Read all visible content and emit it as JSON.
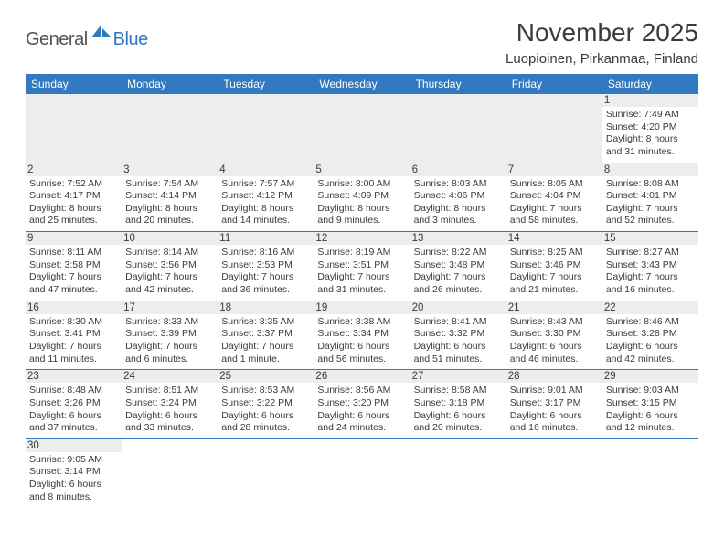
{
  "logo": {
    "text_dark": "General",
    "text_blue": "Blue"
  },
  "title": "November 2025",
  "location": "Luopioinen, Pirkanmaa, Finland",
  "day_headers": [
    "Sunday",
    "Monday",
    "Tuesday",
    "Wednesday",
    "Thursday",
    "Friday",
    "Saturday"
  ],
  "colors": {
    "header_bg": "#3279bf",
    "header_text": "#ffffff",
    "daynum_bg": "#eceded",
    "cell_text": "#3a3a3f",
    "row_border": "#3279bf",
    "logo_dark": "#515159",
    "logo_blue": "#2f78bd"
  },
  "weeks": [
    [
      null,
      null,
      null,
      null,
      null,
      null,
      {
        "n": "1",
        "sunrise": "Sunrise: 7:49 AM",
        "sunset": "Sunset: 4:20 PM",
        "daylight": "Daylight: 8 hours and 31 minutes."
      }
    ],
    [
      {
        "n": "2",
        "sunrise": "Sunrise: 7:52 AM",
        "sunset": "Sunset: 4:17 PM",
        "daylight": "Daylight: 8 hours and 25 minutes."
      },
      {
        "n": "3",
        "sunrise": "Sunrise: 7:54 AM",
        "sunset": "Sunset: 4:14 PM",
        "daylight": "Daylight: 8 hours and 20 minutes."
      },
      {
        "n": "4",
        "sunrise": "Sunrise: 7:57 AM",
        "sunset": "Sunset: 4:12 PM",
        "daylight": "Daylight: 8 hours and 14 minutes."
      },
      {
        "n": "5",
        "sunrise": "Sunrise: 8:00 AM",
        "sunset": "Sunset: 4:09 PM",
        "daylight": "Daylight: 8 hours and 9 minutes."
      },
      {
        "n": "6",
        "sunrise": "Sunrise: 8:03 AM",
        "sunset": "Sunset: 4:06 PM",
        "daylight": "Daylight: 8 hours and 3 minutes."
      },
      {
        "n": "7",
        "sunrise": "Sunrise: 8:05 AM",
        "sunset": "Sunset: 4:04 PM",
        "daylight": "Daylight: 7 hours and 58 minutes."
      },
      {
        "n": "8",
        "sunrise": "Sunrise: 8:08 AM",
        "sunset": "Sunset: 4:01 PM",
        "daylight": "Daylight: 7 hours and 52 minutes."
      }
    ],
    [
      {
        "n": "9",
        "sunrise": "Sunrise: 8:11 AM",
        "sunset": "Sunset: 3:58 PM",
        "daylight": "Daylight: 7 hours and 47 minutes."
      },
      {
        "n": "10",
        "sunrise": "Sunrise: 8:14 AM",
        "sunset": "Sunset: 3:56 PM",
        "daylight": "Daylight: 7 hours and 42 minutes."
      },
      {
        "n": "11",
        "sunrise": "Sunrise: 8:16 AM",
        "sunset": "Sunset: 3:53 PM",
        "daylight": "Daylight: 7 hours and 36 minutes."
      },
      {
        "n": "12",
        "sunrise": "Sunrise: 8:19 AM",
        "sunset": "Sunset: 3:51 PM",
        "daylight": "Daylight: 7 hours and 31 minutes."
      },
      {
        "n": "13",
        "sunrise": "Sunrise: 8:22 AM",
        "sunset": "Sunset: 3:48 PM",
        "daylight": "Daylight: 7 hours and 26 minutes."
      },
      {
        "n": "14",
        "sunrise": "Sunrise: 8:25 AM",
        "sunset": "Sunset: 3:46 PM",
        "daylight": "Daylight: 7 hours and 21 minutes."
      },
      {
        "n": "15",
        "sunrise": "Sunrise: 8:27 AM",
        "sunset": "Sunset: 3:43 PM",
        "daylight": "Daylight: 7 hours and 16 minutes."
      }
    ],
    [
      {
        "n": "16",
        "sunrise": "Sunrise: 8:30 AM",
        "sunset": "Sunset: 3:41 PM",
        "daylight": "Daylight: 7 hours and 11 minutes."
      },
      {
        "n": "17",
        "sunrise": "Sunrise: 8:33 AM",
        "sunset": "Sunset: 3:39 PM",
        "daylight": "Daylight: 7 hours and 6 minutes."
      },
      {
        "n": "18",
        "sunrise": "Sunrise: 8:35 AM",
        "sunset": "Sunset: 3:37 PM",
        "daylight": "Daylight: 7 hours and 1 minute."
      },
      {
        "n": "19",
        "sunrise": "Sunrise: 8:38 AM",
        "sunset": "Sunset: 3:34 PM",
        "daylight": "Daylight: 6 hours and 56 minutes."
      },
      {
        "n": "20",
        "sunrise": "Sunrise: 8:41 AM",
        "sunset": "Sunset: 3:32 PM",
        "daylight": "Daylight: 6 hours and 51 minutes."
      },
      {
        "n": "21",
        "sunrise": "Sunrise: 8:43 AM",
        "sunset": "Sunset: 3:30 PM",
        "daylight": "Daylight: 6 hours and 46 minutes."
      },
      {
        "n": "22",
        "sunrise": "Sunrise: 8:46 AM",
        "sunset": "Sunset: 3:28 PM",
        "daylight": "Daylight: 6 hours and 42 minutes."
      }
    ],
    [
      {
        "n": "23",
        "sunrise": "Sunrise: 8:48 AM",
        "sunset": "Sunset: 3:26 PM",
        "daylight": "Daylight: 6 hours and 37 minutes."
      },
      {
        "n": "24",
        "sunrise": "Sunrise: 8:51 AM",
        "sunset": "Sunset: 3:24 PM",
        "daylight": "Daylight: 6 hours and 33 minutes."
      },
      {
        "n": "25",
        "sunrise": "Sunrise: 8:53 AM",
        "sunset": "Sunset: 3:22 PM",
        "daylight": "Daylight: 6 hours and 28 minutes."
      },
      {
        "n": "26",
        "sunrise": "Sunrise: 8:56 AM",
        "sunset": "Sunset: 3:20 PM",
        "daylight": "Daylight: 6 hours and 24 minutes."
      },
      {
        "n": "27",
        "sunrise": "Sunrise: 8:58 AM",
        "sunset": "Sunset: 3:18 PM",
        "daylight": "Daylight: 6 hours and 20 minutes."
      },
      {
        "n": "28",
        "sunrise": "Sunrise: 9:01 AM",
        "sunset": "Sunset: 3:17 PM",
        "daylight": "Daylight: 6 hours and 16 minutes."
      },
      {
        "n": "29",
        "sunrise": "Sunrise: 9:03 AM",
        "sunset": "Sunset: 3:15 PM",
        "daylight": "Daylight: 6 hours and 12 minutes."
      }
    ],
    [
      {
        "n": "30",
        "sunrise": "Sunrise: 9:05 AM",
        "sunset": "Sunset: 3:14 PM",
        "daylight": "Daylight: 6 hours and 8 minutes."
      },
      null,
      null,
      null,
      null,
      null,
      null
    ]
  ]
}
